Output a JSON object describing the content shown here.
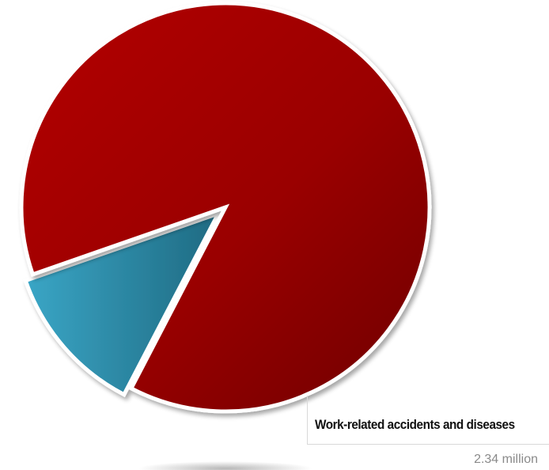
{
  "chart_data": {
    "type": "pie",
    "slices": [
      {
        "label": "Work-related accidents and diseases",
        "value": 2.34,
        "color": "#a80000"
      },
      {
        "label": "",
        "value": 0.32,
        "color": "#2e8aa8"
      }
    ],
    "annotations": [
      {
        "text": "Work-related accidents and diseases",
        "value_text": "2.34 million"
      }
    ]
  }
}
